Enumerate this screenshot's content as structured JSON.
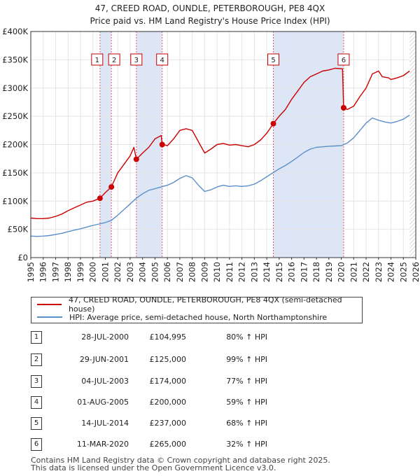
{
  "title_line1": "47, CREED ROAD, OUNDLE, PETERBOROUGH, PE8 4QX",
  "title_line2": "Price paid vs. HM Land Registry's House Price Index (HPI)",
  "colors": {
    "property": "#cc0000",
    "hpi": "#5b8fc9",
    "band": "#dde6f7",
    "vline": "#e06060",
    "grid": "#e4e4e4"
  },
  "chart_data": {
    "type": "line",
    "xlim": [
      1995,
      2026
    ],
    "ylim": [
      0,
      400000
    ],
    "ytick_labels": [
      "£0",
      "£50K",
      "£100K",
      "£150K",
      "£200K",
      "£250K",
      "£300K",
      "£350K",
      "£400K"
    ],
    "yticks": [
      0,
      50000,
      100000,
      150000,
      200000,
      250000,
      300000,
      350000,
      400000
    ],
    "xtick_labels": [
      "1995",
      "1996",
      "1997",
      "1998",
      "1999",
      "2000",
      "2001",
      "2002",
      "2003",
      "2004",
      "2005",
      "2006",
      "2007",
      "2008",
      "2009",
      "2010",
      "2011",
      "2012",
      "2013",
      "2014",
      "2015",
      "2016",
      "2017",
      "2018",
      "2019",
      "2020",
      "2021",
      "2022",
      "2023",
      "2024",
      "2025",
      "2026"
    ],
    "shaded_periods": [
      [
        2000.57,
        2001.49
      ],
      [
        2003.5,
        2005.58
      ],
      [
        2014.53,
        2020.19
      ]
    ],
    "hatched_after": 2025.5,
    "series": [
      {
        "name": "47, CREED ROAD, OUNDLE, PETERBOROUGH, PE8 4QX (semi-detached house)",
        "x": [
          1995,
          1995.5,
          1996,
          1996.5,
          1997,
          1997.5,
          1998,
          1998.5,
          1999,
          1999.5,
          2000,
          2000.57,
          2000.57,
          2001,
          2001.49,
          2001.49,
          2002,
          2002.5,
          2003,
          2003.3,
          2003.5,
          2003.5,
          2004,
          2004.5,
          2005,
          2005.5,
          2005.58,
          2005.58,
          2006,
          2006.5,
          2007,
          2007.5,
          2008,
          2008.5,
          2009,
          2009.5,
          2010,
          2010.5,
          2011,
          2011.5,
          2012,
          2012.5,
          2013,
          2013.5,
          2014,
          2014.53,
          2014.53,
          2015,
          2015.5,
          2016,
          2016.5,
          2017,
          2017.5,
          2018,
          2018.5,
          2019,
          2019.5,
          2020.1,
          2020.19,
          2020.19,
          2020.5,
          2021,
          2021.5,
          2022,
          2022.5,
          2023,
          2023.3,
          2023.8,
          2024,
          2024.5,
          2025,
          2025.5
        ],
        "values": [
          70000,
          69000,
          69000,
          70000,
          73000,
          77000,
          83000,
          88000,
          93000,
          98000,
          100000,
          104995,
          104995,
          115000,
          125000,
          125000,
          150000,
          165000,
          180000,
          195000,
          174000,
          174000,
          185000,
          195000,
          210000,
          216000,
          200000,
          200000,
          198000,
          210000,
          225000,
          228000,
          225000,
          205000,
          185000,
          192000,
          200000,
          202000,
          199000,
          200000,
          198000,
          196000,
          200000,
          208000,
          220000,
          237000,
          237000,
          250000,
          262000,
          280000,
          295000,
          310000,
          320000,
          325000,
          330000,
          332000,
          335000,
          334000,
          265000,
          265000,
          262000,
          268000,
          285000,
          300000,
          325000,
          330000,
          320000,
          318000,
          315000,
          318000,
          322000,
          330000
        ]
      },
      {
        "name": "HPI: Average price, semi-detached house, North Northamptonshire",
        "x": [
          1995,
          1995.5,
          1996,
          1996.5,
          1997,
          1997.5,
          1998,
          1998.5,
          1999,
          1999.5,
          2000,
          2000.5,
          2001,
          2001.5,
          2002,
          2002.5,
          2003,
          2003.5,
          2004,
          2004.5,
          2005,
          2005.5,
          2006,
          2006.5,
          2007,
          2007.5,
          2008,
          2008.5,
          2009,
          2009.5,
          2010,
          2010.5,
          2011,
          2011.5,
          2012,
          2012.5,
          2013,
          2013.5,
          2014,
          2014.5,
          2015,
          2015.5,
          2016,
          2016.5,
          2017,
          2017.5,
          2018,
          2018.5,
          2019,
          2019.5,
          2020,
          2020.5,
          2021,
          2021.5,
          2022,
          2022.5,
          2023,
          2023.5,
          2024,
          2024.5,
          2025,
          2025.5
        ],
        "values": [
          38000,
          37500,
          38000,
          39000,
          41000,
          43000,
          46000,
          48500,
          51000,
          54000,
          57000,
          59500,
          62000,
          66000,
          75000,
          85000,
          95000,
          105000,
          113000,
          119000,
          122000,
          125000,
          128000,
          133000,
          140000,
          145000,
          141000,
          128000,
          117000,
          120000,
          125000,
          128000,
          126000,
          127000,
          126000,
          127000,
          130000,
          136000,
          143000,
          150000,
          157000,
          163000,
          170000,
          178000,
          186000,
          192000,
          195000,
          196000,
          197000,
          197500,
          198000,
          203000,
          212000,
          225000,
          238000,
          247000,
          243000,
          240000,
          238000,
          241000,
          245000,
          252000
        ]
      }
    ],
    "sales": [
      {
        "num": "1",
        "x": 2000.57,
        "value": 104995
      },
      {
        "num": "2",
        "x": 2001.49,
        "value": 125000
      },
      {
        "num": "3",
        "x": 2003.5,
        "value": 174000
      },
      {
        "num": "4",
        "x": 2005.58,
        "value": 200000
      },
      {
        "num": "5",
        "x": 2014.53,
        "value": 237000
      },
      {
        "num": "6",
        "x": 2020.19,
        "value": 265000
      }
    ]
  },
  "legend": {
    "property_label": "47, CREED ROAD, OUNDLE, PETERBOROUGH, PE8 4QX (semi-detached house)",
    "hpi_label": "HPI: Average price, semi-detached house, North Northamptonshire"
  },
  "table": [
    {
      "num": "1",
      "date": "28-JUL-2000",
      "price": "£104,995",
      "hpi": "80% ↑ HPI"
    },
    {
      "num": "2",
      "date": "29-JUN-2001",
      "price": "£125,000",
      "hpi": "99% ↑ HPI"
    },
    {
      "num": "3",
      "date": "04-JUL-2003",
      "price": "£174,000",
      "hpi": "77% ↑ HPI"
    },
    {
      "num": "4",
      "date": "01-AUG-2005",
      "price": "£200,000",
      "hpi": "59% ↑ HPI"
    },
    {
      "num": "5",
      "date": "14-JUL-2014",
      "price": "£237,000",
      "hpi": "68% ↑ HPI"
    },
    {
      "num": "6",
      "date": "11-MAR-2020",
      "price": "£265,000",
      "hpi": "32% ↑ HPI"
    }
  ],
  "footer_line1": "Contains HM Land Registry data © Crown copyright and database right 2025.",
  "footer_line2": "This data is licensed under the Open Government Licence v3.0."
}
